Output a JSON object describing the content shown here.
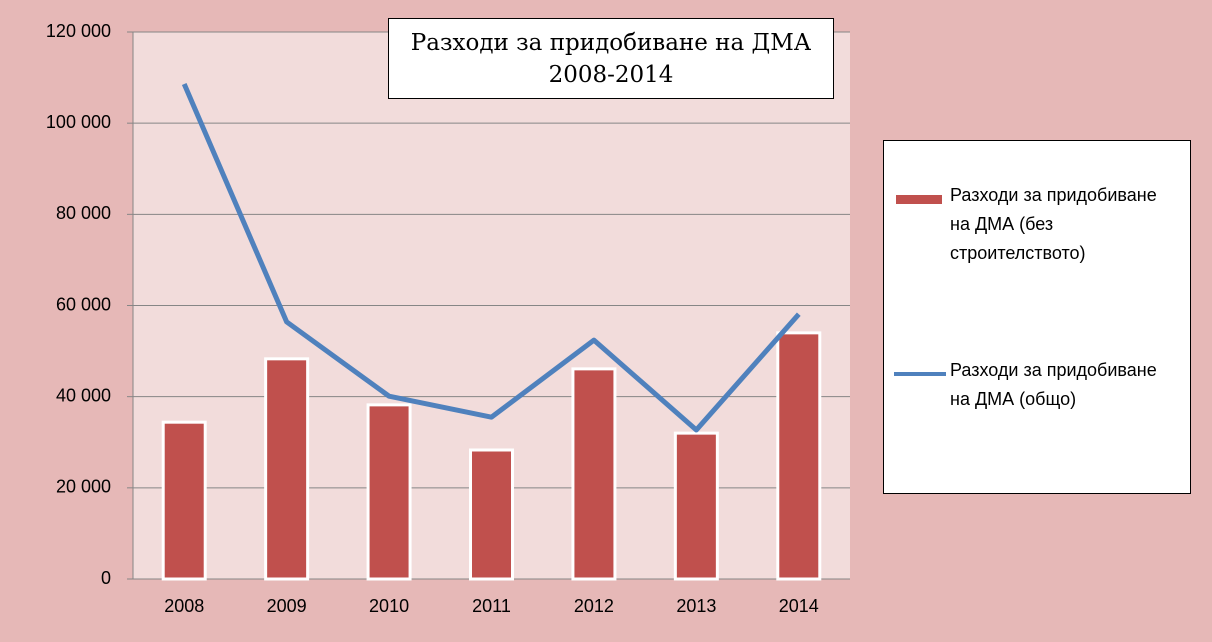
{
  "chart_data": {
    "type": "bar-line",
    "title": "Разходи за придобиване на ДМА\n2008-2014",
    "categories": [
      "2008",
      "2009",
      "2010",
      "2011",
      "2012",
      "2013",
      "2014"
    ],
    "series": [
      {
        "name": "Разходи за придобиване на ДМА (без строителството)",
        "type": "bar",
        "color": "#c0504d",
        "values": [
          34400,
          48300,
          38200,
          28300,
          46100,
          32000,
          54000
        ]
      },
      {
        "name": "Разходи за придобиване на ДМА (общо)",
        "type": "line",
        "color": "#4f81bd",
        "values": [
          108600,
          56400,
          40100,
          35500,
          52400,
          32700,
          58100
        ]
      }
    ],
    "ylim": [
      0,
      120000
    ],
    "yticks": [
      0,
      {
        "value": 20000,
        "label": "20 000"
      },
      {
        "value": 40000,
        "label": "40 000"
      },
      {
        "value": 60000,
        "label": "60 000"
      },
      {
        "value": 80000,
        "label": "80 000"
      },
      {
        "value": 100000,
        "label": "100 000"
      },
      {
        "value": 120000,
        "label": "120 000"
      }
    ],
    "grid": true,
    "legend": "right"
  }
}
